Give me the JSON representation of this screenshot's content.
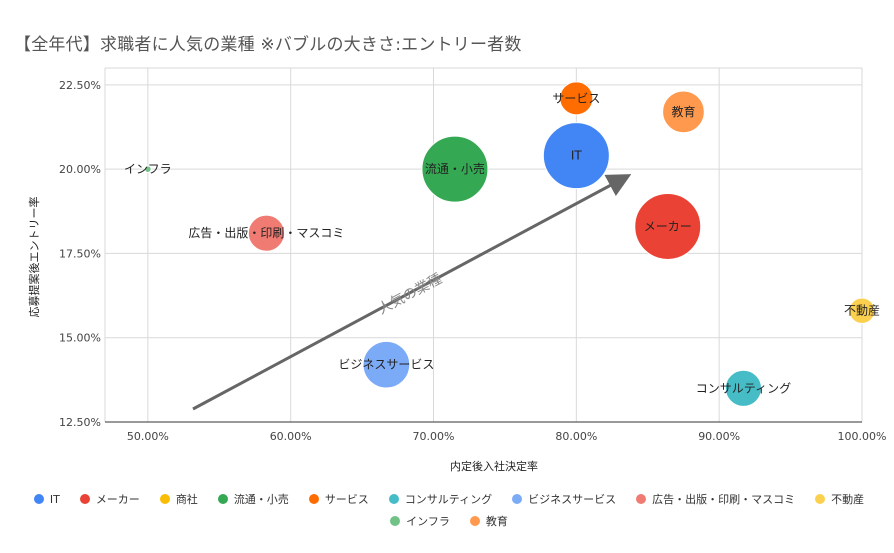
{
  "chart_data": {
    "type": "scatter",
    "title": "【全年代】求職者に人気の業種 ※バブルの大きさ:エントリー者数",
    "xlabel": "内定後入社決定率",
    "ylabel": "応募提案後エントリー率",
    "xlim": [
      0.47,
      1.0
    ],
    "ylim": [
      0.125,
      0.23
    ],
    "x_ticks": [
      "50.00%",
      "60.00%",
      "70.00%",
      "80.00%",
      "90.00%",
      "100.00%"
    ],
    "y_ticks": [
      "12.50%",
      "15.00%",
      "17.50%",
      "20.00%",
      "22.50%"
    ],
    "grid": true,
    "legend_position": "bottom",
    "annotation": "人気の業種",
    "series": [
      {
        "name": "IT",
        "color": "#4285F4",
        "x": 0.8,
        "y": 0.204,
        "size": 1.0
      },
      {
        "name": "メーカー",
        "color": "#EA4335",
        "x": 0.864,
        "y": 0.183,
        "size": 1.0
      },
      {
        "name": "商社",
        "color": "#FBBC04",
        "x": 0.667,
        "y": 0.143,
        "size": 0.2
      },
      {
        "name": "流通・小売",
        "color": "#34A853",
        "x": 0.715,
        "y": 0.2,
        "size": 1.0
      },
      {
        "name": "サービス",
        "color": "#FF6D01",
        "x": 0.8,
        "y": 0.221,
        "size": 0.25
      },
      {
        "name": "コンサルティング",
        "color": "#46BDC6",
        "x": 0.917,
        "y": 0.135,
        "size": 0.3
      },
      {
        "name": "ビジネスサービス",
        "color": "#7BAAF7",
        "x": 0.667,
        "y": 0.142,
        "size": 0.5
      },
      {
        "name": "広告・出版・印刷・マスコミ",
        "color": "#F07B72",
        "x": 0.583,
        "y": 0.181,
        "size": 0.3
      },
      {
        "name": "不動産",
        "color": "#FCD04F",
        "x": 1.0,
        "y": 0.158,
        "size": 0.15
      },
      {
        "name": "インフラ",
        "color": "#71C287",
        "x": 0.5,
        "y": 0.2,
        "size": 0.01
      },
      {
        "name": "教育",
        "color": "#FF994D",
        "x": 0.875,
        "y": 0.217,
        "size": 0.4
      }
    ]
  }
}
